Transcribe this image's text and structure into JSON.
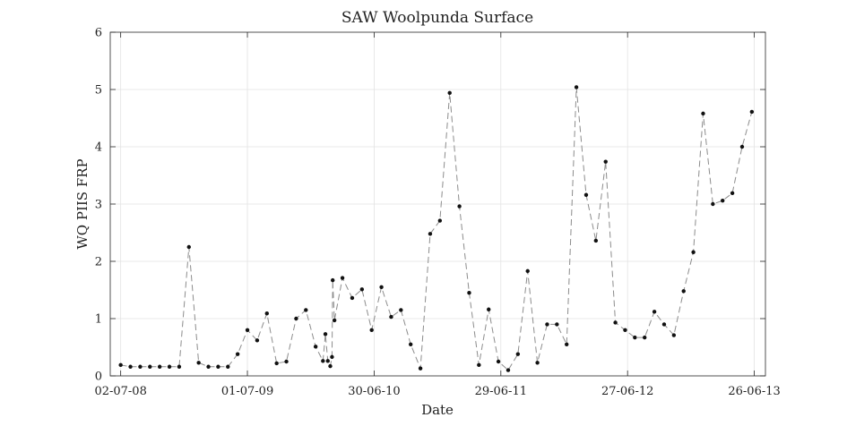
{
  "chart_data": {
    "type": "line",
    "title": "SAW Woolpunda Surface",
    "xlabel": "Date",
    "ylabel": "WQ PIIS FRP",
    "x_tick_labels": [
      "02-07-08",
      "01-07-09",
      "30-06-10",
      "29-06-11",
      "27-06-12",
      "26-06-13"
    ],
    "x_tick_dates": [
      "2008-07-02",
      "2009-07-01",
      "2010-06-30",
      "2011-06-29",
      "2012-06-27",
      "2013-06-26"
    ],
    "xlim": [
      "2008-06-02",
      "2013-07-28"
    ],
    "ylim": [
      0,
      6
    ],
    "y_ticks": [
      0,
      1,
      2,
      3,
      4,
      5,
      6
    ],
    "grid": true,
    "line_color": "#8c8c8c",
    "line_style": "dashed",
    "marker_color": "#111111",
    "series": [
      {
        "points": [
          [
            "2008-07-02",
            0.19
          ],
          [
            "2008-07-30",
            0.16
          ],
          [
            "2008-08-27",
            0.16
          ],
          [
            "2008-09-24",
            0.16
          ],
          [
            "2008-10-22",
            0.16
          ],
          [
            "2008-11-19",
            0.16
          ],
          [
            "2008-12-17",
            0.16
          ],
          [
            "2009-01-14",
            2.25
          ],
          [
            "2009-02-11",
            0.23
          ],
          [
            "2009-03-11",
            0.16
          ],
          [
            "2009-04-08",
            0.16
          ],
          [
            "2009-05-06",
            0.16
          ],
          [
            "2009-06-03",
            0.38
          ],
          [
            "2009-07-01",
            0.8
          ],
          [
            "2009-07-29",
            0.62
          ],
          [
            "2009-08-26",
            1.09
          ],
          [
            "2009-09-23",
            0.22
          ],
          [
            "2009-10-21",
            0.25
          ],
          [
            "2009-11-18",
            1.0
          ],
          [
            "2009-12-16",
            1.15
          ],
          [
            "2010-01-13",
            0.51
          ],
          [
            "2010-02-03",
            0.26
          ],
          [
            "2010-02-10",
            0.73
          ],
          [
            "2010-02-17",
            0.26
          ],
          [
            "2010-02-24",
            0.17
          ],
          [
            "2010-03-01",
            0.33
          ],
          [
            "2010-03-03",
            1.67
          ],
          [
            "2010-03-08",
            0.97
          ],
          [
            "2010-03-31",
            1.71
          ],
          [
            "2010-04-28",
            1.36
          ],
          [
            "2010-05-26",
            1.51
          ],
          [
            "2010-06-23",
            0.8
          ],
          [
            "2010-07-21",
            1.55
          ],
          [
            "2010-08-18",
            1.03
          ],
          [
            "2010-09-15",
            1.15
          ],
          [
            "2010-10-13",
            0.55
          ],
          [
            "2010-11-10",
            0.13
          ],
          [
            "2010-12-08",
            2.48
          ],
          [
            "2011-01-05",
            2.71
          ],
          [
            "2011-02-02",
            4.94
          ],
          [
            "2011-03-02",
            2.96
          ],
          [
            "2011-03-30",
            1.45
          ],
          [
            "2011-04-27",
            0.19
          ],
          [
            "2011-05-25",
            1.16
          ],
          [
            "2011-06-22",
            0.25
          ],
          [
            "2011-07-20",
            0.1
          ],
          [
            "2011-08-17",
            0.38
          ],
          [
            "2011-09-14",
            1.83
          ],
          [
            "2011-10-12",
            0.23
          ],
          [
            "2011-11-09",
            0.9
          ],
          [
            "2011-12-07",
            0.9
          ],
          [
            "2012-01-04",
            0.55
          ],
          [
            "2012-02-01",
            5.04
          ],
          [
            "2012-02-29",
            3.16
          ],
          [
            "2012-03-28",
            2.36
          ],
          [
            "2012-04-25",
            3.74
          ],
          [
            "2012-05-23",
            0.93
          ],
          [
            "2012-06-20",
            0.8
          ],
          [
            "2012-07-18",
            0.67
          ],
          [
            "2012-08-15",
            0.67
          ],
          [
            "2012-09-12",
            1.12
          ],
          [
            "2012-10-10",
            0.9
          ],
          [
            "2012-11-07",
            0.71
          ],
          [
            "2012-12-05",
            1.48
          ],
          [
            "2013-01-02",
            2.16
          ],
          [
            "2013-01-30",
            4.58
          ],
          [
            "2013-02-27",
            3.0
          ],
          [
            "2013-03-27",
            3.06
          ],
          [
            "2013-04-24",
            3.19
          ],
          [
            "2013-05-22",
            4.0
          ],
          [
            "2013-06-19",
            4.61
          ]
        ]
      }
    ]
  }
}
